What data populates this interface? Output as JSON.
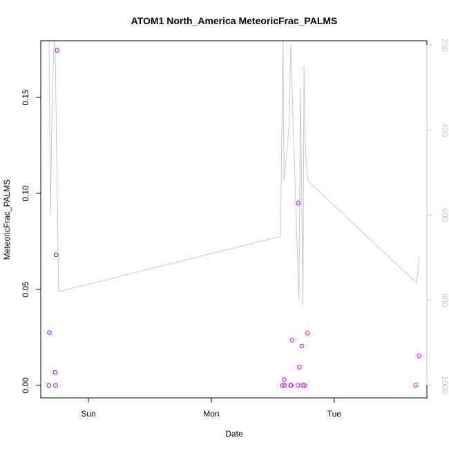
{
  "chart_data": {
    "type": "scatter",
    "title": "ATOM1 North_America MeteoricFrac_PALMS",
    "xlabel": "Date",
    "ylabel": "MeteoricFrac_PALMS",
    "x_tick_labels": [
      "Sun",
      "Mon",
      "Tue"
    ],
    "x_tick_values": [
      0,
      24,
      48
    ],
    "x_unit": "hours since Sun 00:00",
    "xlim": [
      -9.3,
      66.1
    ],
    "ylim": [
      -0.0065,
      0.1795
    ],
    "y_ticks": [
      0.0,
      0.05,
      0.1,
      0.15
    ],
    "y_tick_labels": [
      "0.00",
      "0.05",
      "0.10",
      "0.15"
    ],
    "y2_label": "",
    "y2_reversed": true,
    "y2_lim": [
      1030,
      190
    ],
    "y2_ticks": [
      200,
      400,
      600,
      800,
      1000
    ],
    "y2_tick_labels": [
      "200",
      "400",
      "600",
      "800",
      "1000"
    ],
    "grid": false,
    "colors": {
      "points_low": "#7f00ff",
      "points_high": "#ff00ff",
      "pressure_line": "#c8c8c8",
      "axis": "#000000",
      "right_axis": "#c8c8c8"
    },
    "points": [
      {
        "x": -7.7,
        "y": 0.0,
        "color": "#9a00ff"
      },
      {
        "x": -7.6,
        "y": 0.0275,
        "color": "#9a00ff"
      },
      {
        "x": -6.5,
        "y": 0.0068,
        "color": "#8800ff"
      },
      {
        "x": -6.4,
        "y": 0.0,
        "color": "#8800ff"
      },
      {
        "x": -6.3,
        "y": 0.068,
        "color": "#7f00ff"
      },
      {
        "x": -6.1,
        "y": 0.1745,
        "color": "#7f00ff"
      },
      {
        "x": 37.9,
        "y": 0.0,
        "color": "#d200ff"
      },
      {
        "x": 38.2,
        "y": 0.003,
        "color": "#d200ff"
      },
      {
        "x": 38.3,
        "y": 0.0,
        "color": "#d800ff"
      },
      {
        "x": 39.5,
        "y": 0.0,
        "color": "#e000ff"
      },
      {
        "x": 39.6,
        "y": 0.0,
        "color": "#e000ff"
      },
      {
        "x": 39.8,
        "y": 0.0235,
        "color": "#e800ff"
      },
      {
        "x": 40.9,
        "y": 0.0,
        "color": "#f000ff"
      },
      {
        "x": 41.0,
        "y": 0.095,
        "color": "#c800ff"
      },
      {
        "x": 41.2,
        "y": 0.0095,
        "color": "#f000ff"
      },
      {
        "x": 41.7,
        "y": 0.0205,
        "color": "#f400ff"
      },
      {
        "x": 41.9,
        "y": 0.0,
        "color": "#f400ff"
      },
      {
        "x": 42.2,
        "y": 0.0,
        "color": "#f800ff"
      },
      {
        "x": 42.8,
        "y": 0.0272,
        "color": "#f800ff"
      },
      {
        "x": 63.9,
        "y": 0.0,
        "color": "#ff00ff"
      },
      {
        "x": 64.6,
        "y": 0.0155,
        "color": "#ff00ff"
      }
    ],
    "pressure_line": {
      "x": [
        -7.7,
        -7.4,
        -7.3,
        -7.1,
        -6.7,
        -6.5,
        -5.8,
        37.5,
        38.0,
        38.2,
        39.2,
        39.5,
        40.7,
        41.1,
        41.4,
        41.9,
        42.1,
        42.4,
        42.9,
        64.1,
        64.6
      ],
      "p": [
        190,
        600,
        520,
        350,
        190,
        200,
        780,
        650,
        190,
        520,
        390,
        200,
        650,
        800,
        300,
        810,
        250,
        450,
        520,
        760,
        700
      ]
    }
  }
}
